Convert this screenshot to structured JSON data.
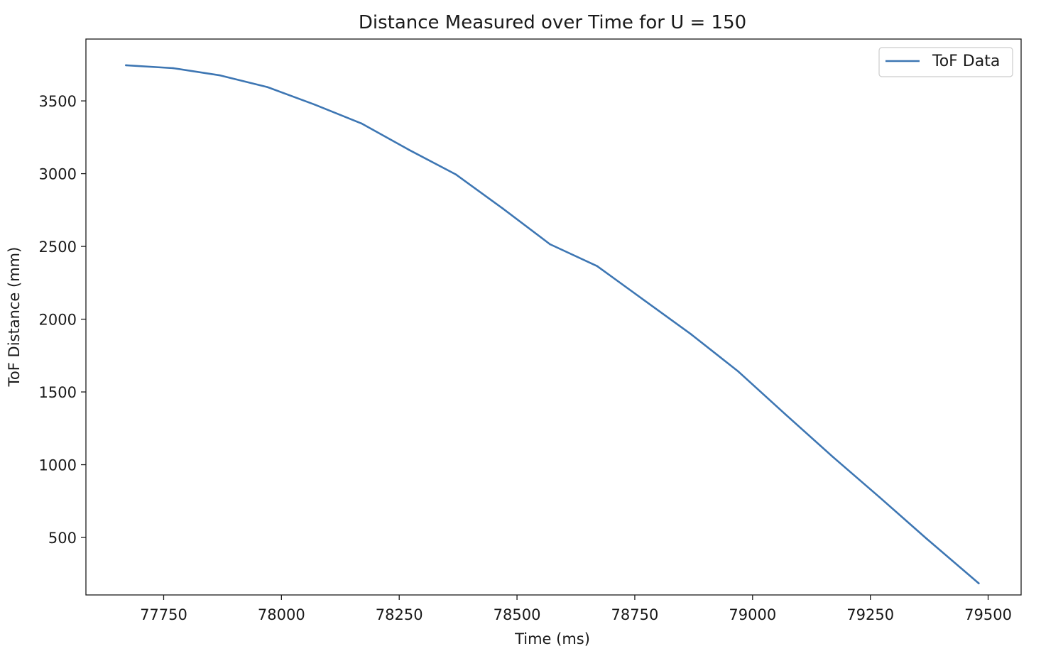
{
  "chart_data": {
    "type": "line",
    "title": "Distance Measured over Time for U = 150",
    "xlabel": "Time (ms)",
    "ylabel": "ToF Distance (mm)",
    "xlim": [
      77585,
      79570
    ],
    "ylim": [
      105,
      3925
    ],
    "xticks": [
      {
        "value": 77750,
        "label": "77750"
      },
      {
        "value": 78000,
        "label": "78000"
      },
      {
        "value": 78250,
        "label": "78250"
      },
      {
        "value": 78500,
        "label": "78500"
      },
      {
        "value": 78750,
        "label": "78750"
      },
      {
        "value": 79000,
        "label": "79000"
      },
      {
        "value": 79250,
        "label": "79250"
      },
      {
        "value": 79500,
        "label": "79500"
      }
    ],
    "yticks": [
      {
        "value": 500,
        "label": "500"
      },
      {
        "value": 1000,
        "label": "1000"
      },
      {
        "value": 1500,
        "label": "1500"
      },
      {
        "value": 2000,
        "label": "2000"
      },
      {
        "value": 2500,
        "label": "2500"
      },
      {
        "value": 3000,
        "label": "3000"
      },
      {
        "value": 3500,
        "label": "3500"
      }
    ],
    "grid": false,
    "legend_position": "top-right",
    "series": [
      {
        "name": "ToF Data",
        "color": "#3d76b3",
        "x": [
          77670,
          77770,
          77870,
          77970,
          78070,
          78170,
          78270,
          78370,
          78470,
          78570,
          78670,
          78770,
          78870,
          78970,
          79070,
          79170,
          79270,
          79370,
          79480
        ],
        "y": [
          3745,
          3725,
          3675,
          3595,
          3475,
          3345,
          3165,
          2995,
          2760,
          2515,
          2365,
          2130,
          1895,
          1640,
          1345,
          1055,
          775,
          490,
          185
        ]
      }
    ]
  }
}
